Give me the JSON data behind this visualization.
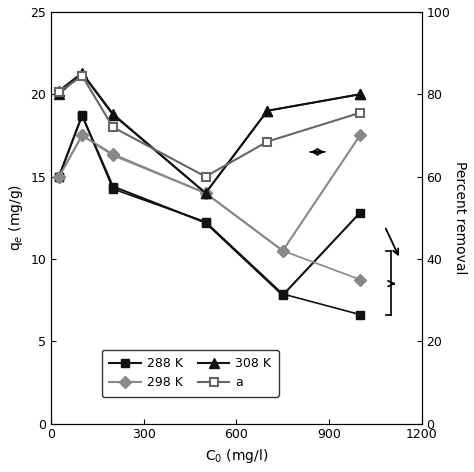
{
  "xlabel": "C$_0$ (mg/l)",
  "ylabel_left": "q$_e$ (mg/g)",
  "ylabel_right": "Percent removal",
  "xlim": [
    0,
    1200
  ],
  "ylim_left": [
    0,
    25
  ],
  "ylim_right": [
    0,
    100
  ],
  "x288K": [
    25,
    100,
    200,
    500,
    750,
    1000
  ],
  "y288K": [
    15.0,
    18.7,
    14.4,
    12.2,
    7.8,
    12.8
  ],
  "x298K": [
    25,
    100,
    200,
    500,
    750,
    1000
  ],
  "y298K": [
    15.0,
    17.5,
    16.3,
    14.0,
    10.5,
    17.5
  ],
  "x308K": [
    25,
    100,
    200,
    500,
    700,
    1000
  ],
  "y308K": [
    20.2,
    21.3,
    18.8,
    14.0,
    19.0,
    20.0
  ],
  "xpct288K": [
    25,
    100,
    200,
    500,
    750,
    1000
  ],
  "ypct288K": [
    60.0,
    75.0,
    57.0,
    49.0,
    31.5,
    26.5
  ],
  "xpct298K": [
    25,
    100,
    200,
    500,
    750,
    1000
  ],
  "ypct298K": [
    60.0,
    70.0,
    65.5,
    56.0,
    42.0,
    35.0
  ],
  "xpct308K": [
    25,
    100,
    200,
    500,
    700,
    1000
  ],
  "ypct308K": [
    80.0,
    85.0,
    75.0,
    56.0,
    76.0,
    80.0
  ],
  "xa": [
    25,
    100,
    200,
    500,
    700,
    1000
  ],
  "ya": [
    80.5,
    84.5,
    72.0,
    60.0,
    68.5,
    75.5
  ],
  "color_288K": "#111111",
  "color_298K": "#888888",
  "color_308K": "#111111",
  "color_a": "#666666",
  "background": "#ffffff"
}
